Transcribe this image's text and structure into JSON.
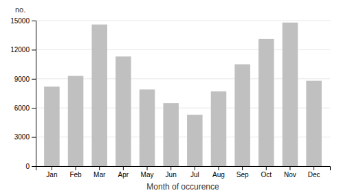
{
  "chart_data": {
    "type": "bar",
    "categories": [
      "Jan",
      "Feb",
      "Mar",
      "Apr",
      "May",
      "Jun",
      "Jul",
      "Aug",
      "Sep",
      "Oct",
      "Nov",
      "Dec"
    ],
    "values": [
      8200,
      9300,
      14600,
      11300,
      7900,
      6500,
      5300,
      7700,
      10500,
      13100,
      14800,
      8800
    ],
    "color": "#c0c0c0",
    "xlabel": "Month of occurence",
    "ylabel": "no.",
    "ylim": [
      0,
      15000
    ],
    "yticks": [
      0,
      3000,
      6000,
      9000,
      12000,
      15000
    ],
    "grid": true
  }
}
